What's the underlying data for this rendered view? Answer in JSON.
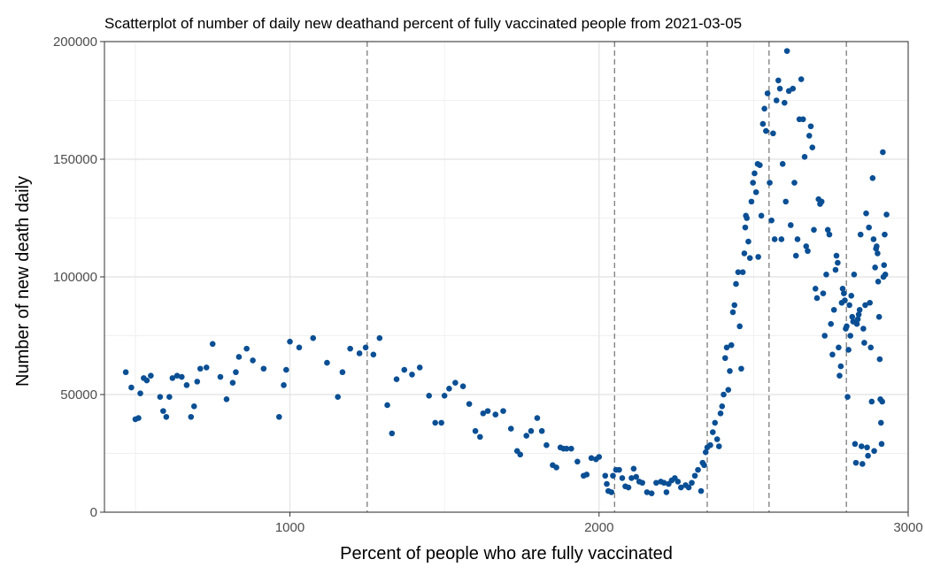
{
  "chart_data": {
    "type": "scatter",
    "title": "Scatterplot of number of daily new deathand percent of  fully vaccinated people from 2021-03-05",
    "xlabel": "Percent of people who are fully vaccinated",
    "ylabel": "Number of new death daily",
    "xlim": [
      400,
      3000
    ],
    "ylim": [
      0,
      200000
    ],
    "x_ticks": [
      1000,
      2000,
      3000
    ],
    "x_tick_labels": [
      "1000",
      "2000",
      "3000"
    ],
    "y_ticks": [
      0,
      50000,
      100000,
      150000,
      200000
    ],
    "y_tick_labels": [
      "0",
      "50000",
      "100000",
      "150000",
      "200000"
    ],
    "x_minor_ticks": [
      500,
      1500,
      2500
    ],
    "y_minor_ticks": [
      25000,
      75000,
      125000,
      175000
    ],
    "vlines": [
      1250,
      2050,
      2350,
      2550,
      2800
    ],
    "grid": true,
    "point_color": "#0a4f94",
    "points": [
      [
        469,
        59500
      ],
      [
        487,
        53000
      ],
      [
        500,
        39500
      ],
      [
        510,
        40000
      ],
      [
        516,
        50500
      ],
      [
        527,
        57000
      ],
      [
        537,
        56000
      ],
      [
        550,
        58000
      ],
      [
        580,
        49000
      ],
      [
        590,
        43000
      ],
      [
        600,
        40500
      ],
      [
        610,
        49000
      ],
      [
        620,
        57000
      ],
      [
        635,
        58000
      ],
      [
        650,
        57500
      ],
      [
        666,
        54000
      ],
      [
        680,
        40500
      ],
      [
        690,
        45000
      ],
      [
        700,
        55500
      ],
      [
        710,
        61000
      ],
      [
        730,
        61500
      ],
      [
        750,
        71500
      ],
      [
        775,
        57500
      ],
      [
        795,
        48000
      ],
      [
        815,
        55000
      ],
      [
        825,
        59500
      ],
      [
        835,
        66000
      ],
      [
        860,
        69500
      ],
      [
        880,
        64500
      ],
      [
        915,
        61000
      ],
      [
        965,
        40500
      ],
      [
        980,
        54000
      ],
      [
        988,
        60500
      ],
      [
        1000,
        72500
      ],
      [
        1030,
        70000
      ],
      [
        1075,
        74000
      ],
      [
        1120,
        63500
      ],
      [
        1155,
        49000
      ],
      [
        1170,
        59500
      ],
      [
        1195,
        69500
      ],
      [
        1225,
        67500
      ],
      [
        1245,
        70000
      ],
      [
        1270,
        67000
      ],
      [
        1290,
        74000
      ],
      [
        1315,
        45500
      ],
      [
        1330,
        33500
      ],
      [
        1345,
        56500
      ],
      [
        1370,
        60500
      ],
      [
        1395,
        58500
      ],
      [
        1420,
        61500
      ],
      [
        1450,
        49500
      ],
      [
        1470,
        38000
      ],
      [
        1490,
        38000
      ],
      [
        1500,
        49500
      ],
      [
        1515,
        52500
      ],
      [
        1535,
        55000
      ],
      [
        1560,
        53500
      ],
      [
        1580,
        46000
      ],
      [
        1600,
        34500
      ],
      [
        1615,
        32000
      ],
      [
        1625,
        42000
      ],
      [
        1640,
        43000
      ],
      [
        1665,
        41500
      ],
      [
        1690,
        43000
      ],
      [
        1715,
        35500
      ],
      [
        1735,
        26000
      ],
      [
        1745,
        24500
      ],
      [
        1765,
        32500
      ],
      [
        1780,
        34500
      ],
      [
        1800,
        40000
      ],
      [
        1815,
        34500
      ],
      [
        1830,
        28500
      ],
      [
        1850,
        20000
      ],
      [
        1862,
        19000
      ],
      [
        1875,
        27500
      ],
      [
        1885,
        27000
      ],
      [
        1895,
        27000
      ],
      [
        1910,
        27000
      ],
      [
        1930,
        21500
      ],
      [
        1950,
        15500
      ],
      [
        1960,
        16000
      ],
      [
        1975,
        23000
      ],
      [
        1990,
        22500
      ],
      [
        2000,
        23500
      ],
      [
        2020,
        15500
      ],
      [
        2025,
        12000
      ],
      [
        2030,
        9000
      ],
      [
        2040,
        8500
      ],
      [
        2045,
        15500
      ],
      [
        2055,
        18000
      ],
      [
        2065,
        18000
      ],
      [
        2075,
        14500
      ],
      [
        2085,
        11000
      ],
      [
        2095,
        10500
      ],
      [
        2105,
        14500
      ],
      [
        2112,
        18500
      ],
      [
        2120,
        15000
      ],
      [
        2130,
        13000
      ],
      [
        2140,
        12500
      ],
      [
        2155,
        8500
      ],
      [
        2170,
        8000
      ],
      [
        2185,
        12500
      ],
      [
        2200,
        13000
      ],
      [
        2210,
        12500
      ],
      [
        2218,
        8500
      ],
      [
        2225,
        12000
      ],
      [
        2235,
        13500
      ],
      [
        2245,
        14500
      ],
      [
        2255,
        13000
      ],
      [
        2265,
        10500
      ],
      [
        2280,
        11500
      ],
      [
        2290,
        10500
      ],
      [
        2300,
        12500
      ],
      [
        2310,
        15500
      ],
      [
        2320,
        18000
      ],
      [
        2330,
        9000
      ],
      [
        2335,
        21000
      ],
      [
        2340,
        20000
      ],
      [
        2345,
        25500
      ],
      [
        2350,
        27500
      ],
      [
        2360,
        28500
      ],
      [
        2368,
        34000
      ],
      [
        2375,
        38000
      ],
      [
        2382,
        31000
      ],
      [
        2388,
        28000
      ],
      [
        2393,
        42000
      ],
      [
        2398,
        45000
      ],
      [
        2403,
        50000
      ],
      [
        2408,
        65500
      ],
      [
        2413,
        70000
      ],
      [
        2418,
        52000
      ],
      [
        2423,
        60000
      ],
      [
        2428,
        71000
      ],
      [
        2433,
        85000
      ],
      [
        2438,
        88000
      ],
      [
        2443,
        97000
      ],
      [
        2450,
        102000
      ],
      [
        2455,
        79000
      ],
      [
        2460,
        61000
      ],
      [
        2465,
        102000
      ],
      [
        2470,
        110000
      ],
      [
        2473,
        121000
      ],
      [
        2475,
        126000
      ],
      [
        2478,
        125000
      ],
      [
        2483,
        115000
      ],
      [
        2488,
        108000
      ],
      [
        2493,
        132000
      ],
      [
        2498,
        140000
      ],
      [
        2503,
        144000
      ],
      [
        2508,
        136000
      ],
      [
        2513,
        148000
      ],
      [
        2515,
        108500
      ],
      [
        2520,
        147500
      ],
      [
        2525,
        126000
      ],
      [
        2530,
        165000
      ],
      [
        2535,
        171500
      ],
      [
        2540,
        162000
      ],
      [
        2545,
        178000
      ],
      [
        2552,
        140000
      ],
      [
        2558,
        124000
      ],
      [
        2563,
        161000
      ],
      [
        2568,
        116000
      ],
      [
        2574,
        175000
      ],
      [
        2580,
        183500
      ],
      [
        2585,
        180000
      ],
      [
        2590,
        116000
      ],
      [
        2594,
        148000
      ],
      [
        2600,
        174000
      ],
      [
        2604,
        132000
      ],
      [
        2608,
        196000
      ],
      [
        2614,
        179000
      ],
      [
        2620,
        122000
      ],
      [
        2627,
        180000
      ],
      [
        2632,
        140000
      ],
      [
        2637,
        109000
      ],
      [
        2642,
        116000
      ],
      [
        2648,
        167000
      ],
      [
        2654,
        184000
      ],
      [
        2660,
        167000
      ],
      [
        2665,
        151000
      ],
      [
        2670,
        113000
      ],
      [
        2675,
        111000
      ],
      [
        2680,
        160000
      ],
      [
        2685,
        164000
      ],
      [
        2690,
        155000
      ],
      [
        2695,
        120000
      ],
      [
        2700,
        95000
      ],
      [
        2705,
        91000
      ],
      [
        2710,
        133000
      ],
      [
        2715,
        131000
      ],
      [
        2720,
        132000
      ],
      [
        2725,
        93000
      ],
      [
        2730,
        75000
      ],
      [
        2735,
        101000
      ],
      [
        2740,
        120000
      ],
      [
        2745,
        118000
      ],
      [
        2750,
        80000
      ],
      [
        2755,
        67000
      ],
      [
        2760,
        86000
      ],
      [
        2765,
        103000
      ],
      [
        2768,
        109000
      ],
      [
        2772,
        106000
      ],
      [
        2775,
        70000
      ],
      [
        2778,
        58000
      ],
      [
        2782,
        62000
      ],
      [
        2785,
        89000
      ],
      [
        2788,
        95000
      ],
      [
        2792,
        93000
      ],
      [
        2795,
        90000
      ],
      [
        2798,
        78000
      ],
      [
        2801,
        79000
      ],
      [
        2804,
        49000
      ],
      [
        2807,
        69000
      ],
      [
        2810,
        88000
      ],
      [
        2813,
        75000
      ],
      [
        2816,
        92000
      ],
      [
        2819,
        83000
      ],
      [
        2822,
        81000
      ],
      [
        2825,
        101000
      ],
      [
        2828,
        29000
      ],
      [
        2831,
        21000
      ],
      [
        2834,
        80000
      ],
      [
        2837,
        82000
      ],
      [
        2840,
        84000
      ],
      [
        2843,
        86000
      ],
      [
        2846,
        118000
      ],
      [
        2849,
        28000
      ],
      [
        2852,
        20500
      ],
      [
        2855,
        78000
      ],
      [
        2858,
        72000
      ],
      [
        2861,
        88000
      ],
      [
        2864,
        127000
      ],
      [
        2867,
        27500
      ],
      [
        2870,
        24000
      ],
      [
        2873,
        121000
      ],
      [
        2876,
        89000
      ],
      [
        2879,
        70000
      ],
      [
        2882,
        47000
      ],
      [
        2885,
        142000
      ],
      [
        2888,
        116000
      ],
      [
        2890,
        26000
      ],
      [
        2893,
        104000
      ],
      [
        2896,
        112000
      ],
      [
        2898,
        113000
      ],
      [
        2901,
        110000
      ],
      [
        2903,
        98000
      ],
      [
        2906,
        83000
      ],
      [
        2908,
        65000
      ],
      [
        2910,
        48000
      ],
      [
        2912,
        38000
      ],
      [
        2914,
        29000
      ],
      [
        2916,
        47000
      ],
      [
        2918,
        153000
      ],
      [
        2920,
        100000
      ],
      [
        2922,
        105000
      ],
      [
        2924,
        118000
      ],
      [
        2926,
        101000
      ],
      [
        2930,
        126500
      ]
    ]
  }
}
